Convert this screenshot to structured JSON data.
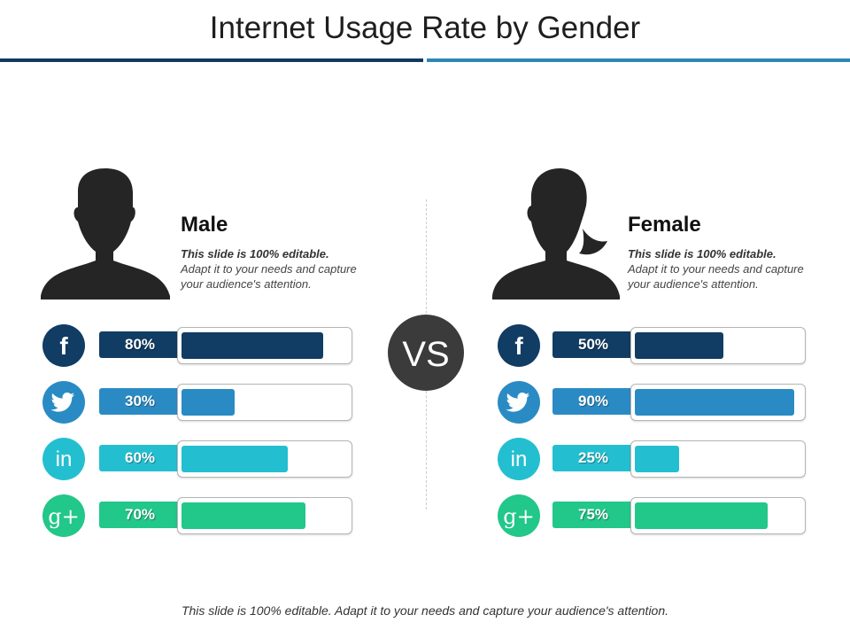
{
  "slide": {
    "title": "Internet Usage Rate by Gender",
    "vs_label": "VS",
    "footer": "This slide is 100% editable. Adapt it to your needs and capture your audience's attention."
  },
  "colors": {
    "facebook": "#113c63",
    "twitter": "#2a8bc4",
    "linkedin": "#23bfd0",
    "googleplus": "#22c78a"
  },
  "icons": {
    "facebook": "f",
    "linkedin": "in",
    "googleplus": "g+"
  },
  "groups": [
    {
      "name": "Male",
      "desc_bold": "This slide is 100% editable.",
      "desc": "Adapt it to your needs and capture your audience's attention."
    },
    {
      "name": "Female",
      "desc_bold": "This slide is 100% editable.",
      "desc": "Adapt it to your needs and capture your audience's attention."
    }
  ],
  "chart_data": {
    "type": "bar",
    "title": "Internet Usage Rate by Gender",
    "categories": [
      "Facebook",
      "Twitter",
      "LinkedIn",
      "Google+"
    ],
    "series": [
      {
        "name": "Male",
        "values": [
          80,
          30,
          60,
          70
        ],
        "labels": [
          "80%",
          "30%",
          "60%",
          "70%"
        ]
      },
      {
        "name": "Female",
        "values": [
          50,
          90,
          25,
          75
        ],
        "labels": [
          "50%",
          "90%",
          "25%",
          "75%"
        ]
      }
    ],
    "ylim": [
      0,
      100
    ]
  }
}
